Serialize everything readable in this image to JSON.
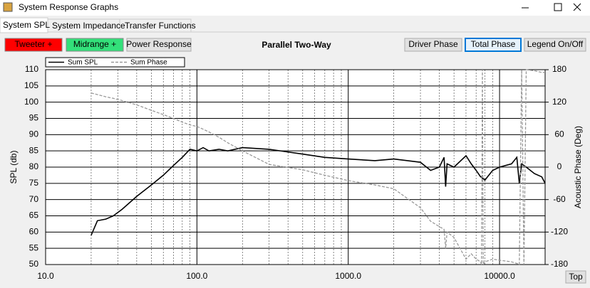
{
  "window": {
    "title": "System Response Graphs"
  },
  "tabs": [
    "System SPL",
    "System Impedance",
    "Transfer Functions"
  ],
  "buttons": {
    "left": [
      "Tweeter +",
      "Midrange +",
      "Power Response"
    ],
    "right": [
      "Driver Phase",
      "Total Phase",
      "Legend On/Off"
    ],
    "bottom": "Top"
  },
  "chart_data": {
    "type": "line",
    "title": "Parallel Two-Way",
    "y_label": "SPL (db)",
    "y2_label": "Acoustic Phase (Deg)",
    "xscale": "log",
    "grid": true,
    "xlim": [
      10,
      20000
    ],
    "xticks": [
      {
        "value": 10,
        "label": "10.0"
      },
      {
        "value": 100,
        "label": "100.0"
      },
      {
        "value": 1000,
        "label": "1000.0"
      },
      {
        "value": 10000,
        "label": "10000.0"
      }
    ],
    "xminorticks": [
      20,
      30,
      40,
      50,
      60,
      70,
      80,
      90,
      200,
      300,
      400,
      500,
      600,
      700,
      800,
      900,
      2000,
      3000,
      4000,
      5000,
      6000,
      7000,
      8000,
      9000
    ],
    "ylim": [
      50,
      110
    ],
    "yticks": [
      50,
      55,
      60,
      65,
      70,
      75,
      80,
      85,
      90,
      95,
      100,
      105,
      110
    ],
    "y2lim": [
      -180,
      180
    ],
    "y2ticks": [
      -180,
      -120,
      -60,
      0,
      60,
      120,
      180
    ],
    "x": [
      20,
      22,
      25,
      28,
      32,
      40,
      50,
      60,
      70,
      80,
      90,
      100,
      110,
      120,
      140,
      160,
      200,
      300,
      500,
      700,
      1000,
      1500,
      2000,
      3000,
      3500,
      4000,
      4300,
      4400,
      4500,
      5000,
      6000,
      6500,
      7000,
      7500,
      7600,
      7700,
      7800,
      8000,
      9000,
      10000,
      12000,
      13000,
      13500,
      14000,
      14500,
      15000,
      17000,
      19000,
      20000
    ],
    "series": [
      {
        "name": "Sum SPL",
        "color": "#000000",
        "dash": false,
        "values": [
          59,
          63.5,
          64,
          65,
          67,
          71,
          74.5,
          77.5,
          80.5,
          83,
          85.5,
          85,
          86,
          85,
          85.5,
          85,
          86,
          85.5,
          84,
          83,
          82.5,
          82,
          82.5,
          81.5,
          79,
          80,
          83,
          74,
          81,
          80,
          83.5,
          81,
          79,
          77,
          77,
          76.5,
          76.5,
          76,
          79,
          80,
          81,
          83,
          75,
          81,
          80.5,
          80,
          78,
          77,
          75
        ]
      },
      {
        "name": "Sum Phase",
        "color": "#999999",
        "dash": true,
        "axis": "y2",
        "values": [
          137,
          134,
          130,
          127,
          123,
          115,
          105,
          97,
          90,
          83,
          78,
          75,
          70,
          65,
          55,
          45,
          30,
          5,
          -5,
          -15,
          -25,
          -33,
          -40,
          -75,
          -100,
          -110,
          -115,
          -150,
          -120,
          -130,
          -170,
          -160,
          -170,
          -175,
          -180,
          180,
          -180,
          -175,
          -170,
          -172,
          -175,
          -178,
          -180,
          180,
          -180,
          180,
          178,
          175,
          175
        ]
      }
    ]
  }
}
